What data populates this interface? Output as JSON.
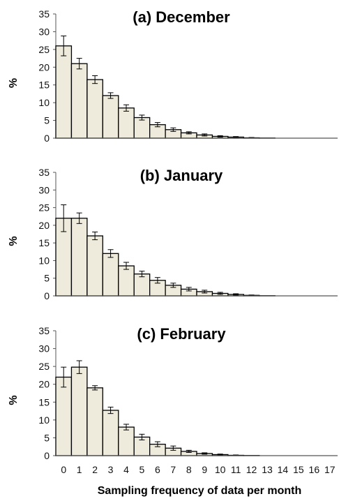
{
  "chart_data": [
    {
      "type": "bar",
      "title": "(a) December",
      "ylabel": "%",
      "xlabel": "",
      "ylim": [
        0,
        35
      ],
      "yticks": [
        0,
        5,
        10,
        15,
        20,
        25,
        30,
        35
      ],
      "categories": [
        "0",
        "1",
        "2",
        "3",
        "4",
        "5",
        "6",
        "7",
        "8",
        "9",
        "10",
        "11",
        "12",
        "13",
        "14",
        "15",
        "16",
        "17"
      ],
      "values": [
        26.0,
        21.0,
        16.5,
        12.0,
        8.5,
        5.8,
        3.8,
        2.4,
        1.5,
        0.9,
        0.5,
        0.3,
        0.1,
        0.05,
        0,
        0,
        0,
        0
      ],
      "errors": [
        2.8,
        1.5,
        1.1,
        0.8,
        0.9,
        0.7,
        0.6,
        0.5,
        0.3,
        0.3,
        0.2,
        0.15,
        0.1,
        0.05,
        0,
        0,
        0,
        0
      ],
      "show_x_ticks": false
    },
    {
      "type": "bar",
      "title": "(b) January",
      "ylabel": "%",
      "xlabel": "",
      "ylim": [
        0,
        35
      ],
      "yticks": [
        0,
        5,
        10,
        15,
        20,
        25,
        30,
        35
      ],
      "categories": [
        "0",
        "1",
        "2",
        "3",
        "4",
        "5",
        "6",
        "7",
        "8",
        "9",
        "10",
        "11",
        "12",
        "13",
        "14",
        "15",
        "16",
        "17"
      ],
      "values": [
        22.0,
        22.0,
        17.0,
        12.0,
        8.5,
        6.2,
        4.4,
        3.0,
        1.9,
        1.2,
        0.7,
        0.4,
        0.15,
        0.05,
        0,
        0,
        0,
        0
      ],
      "errors": [
        3.8,
        1.5,
        1.1,
        1.1,
        1.0,
        0.8,
        0.8,
        0.6,
        0.5,
        0.4,
        0.3,
        0.2,
        0.1,
        0.05,
        0,
        0,
        0,
        0
      ],
      "show_x_ticks": false
    },
    {
      "type": "bar",
      "title": "(c) February",
      "ylabel": "%",
      "xlabel": "Sampling frequency of data per month",
      "ylim": [
        0,
        35
      ],
      "yticks": [
        0,
        5,
        10,
        15,
        20,
        25,
        30,
        35
      ],
      "categories": [
        "0",
        "1",
        "2",
        "3",
        "4",
        "5",
        "6",
        "7",
        "8",
        "9",
        "10",
        "11",
        "12",
        "13",
        "14",
        "15",
        "16",
        "17"
      ],
      "values": [
        22.0,
        24.8,
        19.0,
        12.7,
        8.0,
        5.2,
        3.2,
        2.1,
        1.2,
        0.6,
        0.3,
        0.1,
        0.05,
        0,
        0,
        0,
        0,
        0
      ],
      "errors": [
        2.8,
        1.8,
        0.6,
        0.9,
        0.8,
        0.8,
        0.7,
        0.6,
        0.3,
        0.2,
        0.15,
        0.1,
        0.05,
        0,
        0,
        0,
        0,
        0
      ],
      "show_x_ticks": true
    }
  ]
}
